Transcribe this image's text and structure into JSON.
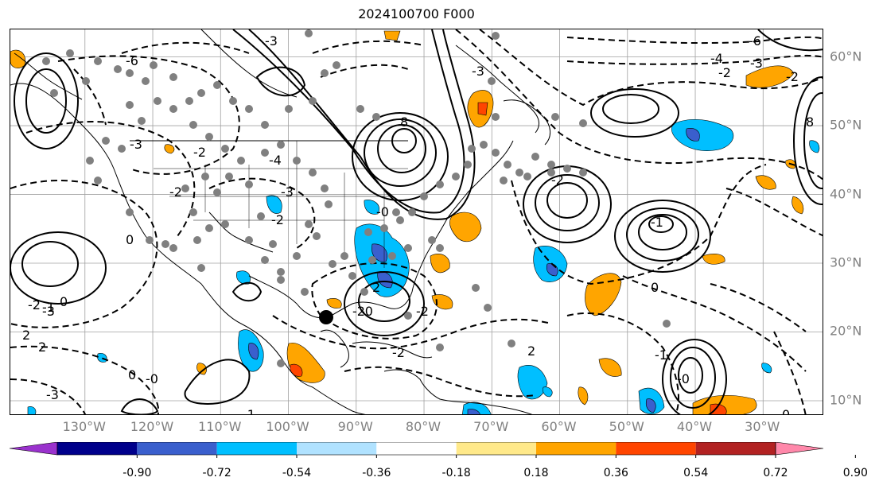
{
  "title": "2024100700 F000",
  "map": {
    "lon_labels": [
      "130°W",
      "120°W",
      "110°W",
      "100°W",
      "90°W",
      "80°W",
      "70°W",
      "60°W",
      "50°W",
      "40°W",
      "30°W"
    ],
    "lat_labels": [
      "60°N",
      "50°N",
      "40°N",
      "30°N",
      "20°N",
      "10°N"
    ],
    "extent": {
      "lon_min": -141,
      "lon_max": -21,
      "lat_min": 7.8,
      "lat_max": 64
    }
  },
  "contour_labels": [
    "-6",
    "-3",
    "-4",
    "-2",
    "-6",
    "-3",
    "-2",
    "-3",
    "8",
    "8",
    "-3",
    "-2",
    "-4",
    "-3",
    "-2",
    "2",
    "-1",
    "-3",
    "-2",
    "2",
    "0",
    "-0",
    "-1",
    "-2",
    "-1",
    "-0",
    "-0",
    "0",
    "-2",
    "0",
    "-2",
    "2",
    "-2",
    "-0",
    "0",
    "-2",
    "-3",
    "2",
    "-1",
    "0"
  ],
  "colorbar": {
    "ticks": [
      "-0.90",
      "-0.72",
      "-0.54",
      "-0.36",
      "-0.18",
      "0.18",
      "0.36",
      "0.54",
      "0.72",
      "0.90"
    ],
    "colors": [
      "#9a32cd",
      "#00008b",
      "#3a5fcd",
      "#00bfff",
      "#b0e2ff",
      "#ffffff",
      "#ffe98a",
      "#ffa500",
      "#ff4500",
      "#b22222",
      "#ff88aa"
    ]
  },
  "colors": {
    "grid": "#a0a0a0",
    "station": "#808080",
    "contour": "#000000"
  }
}
